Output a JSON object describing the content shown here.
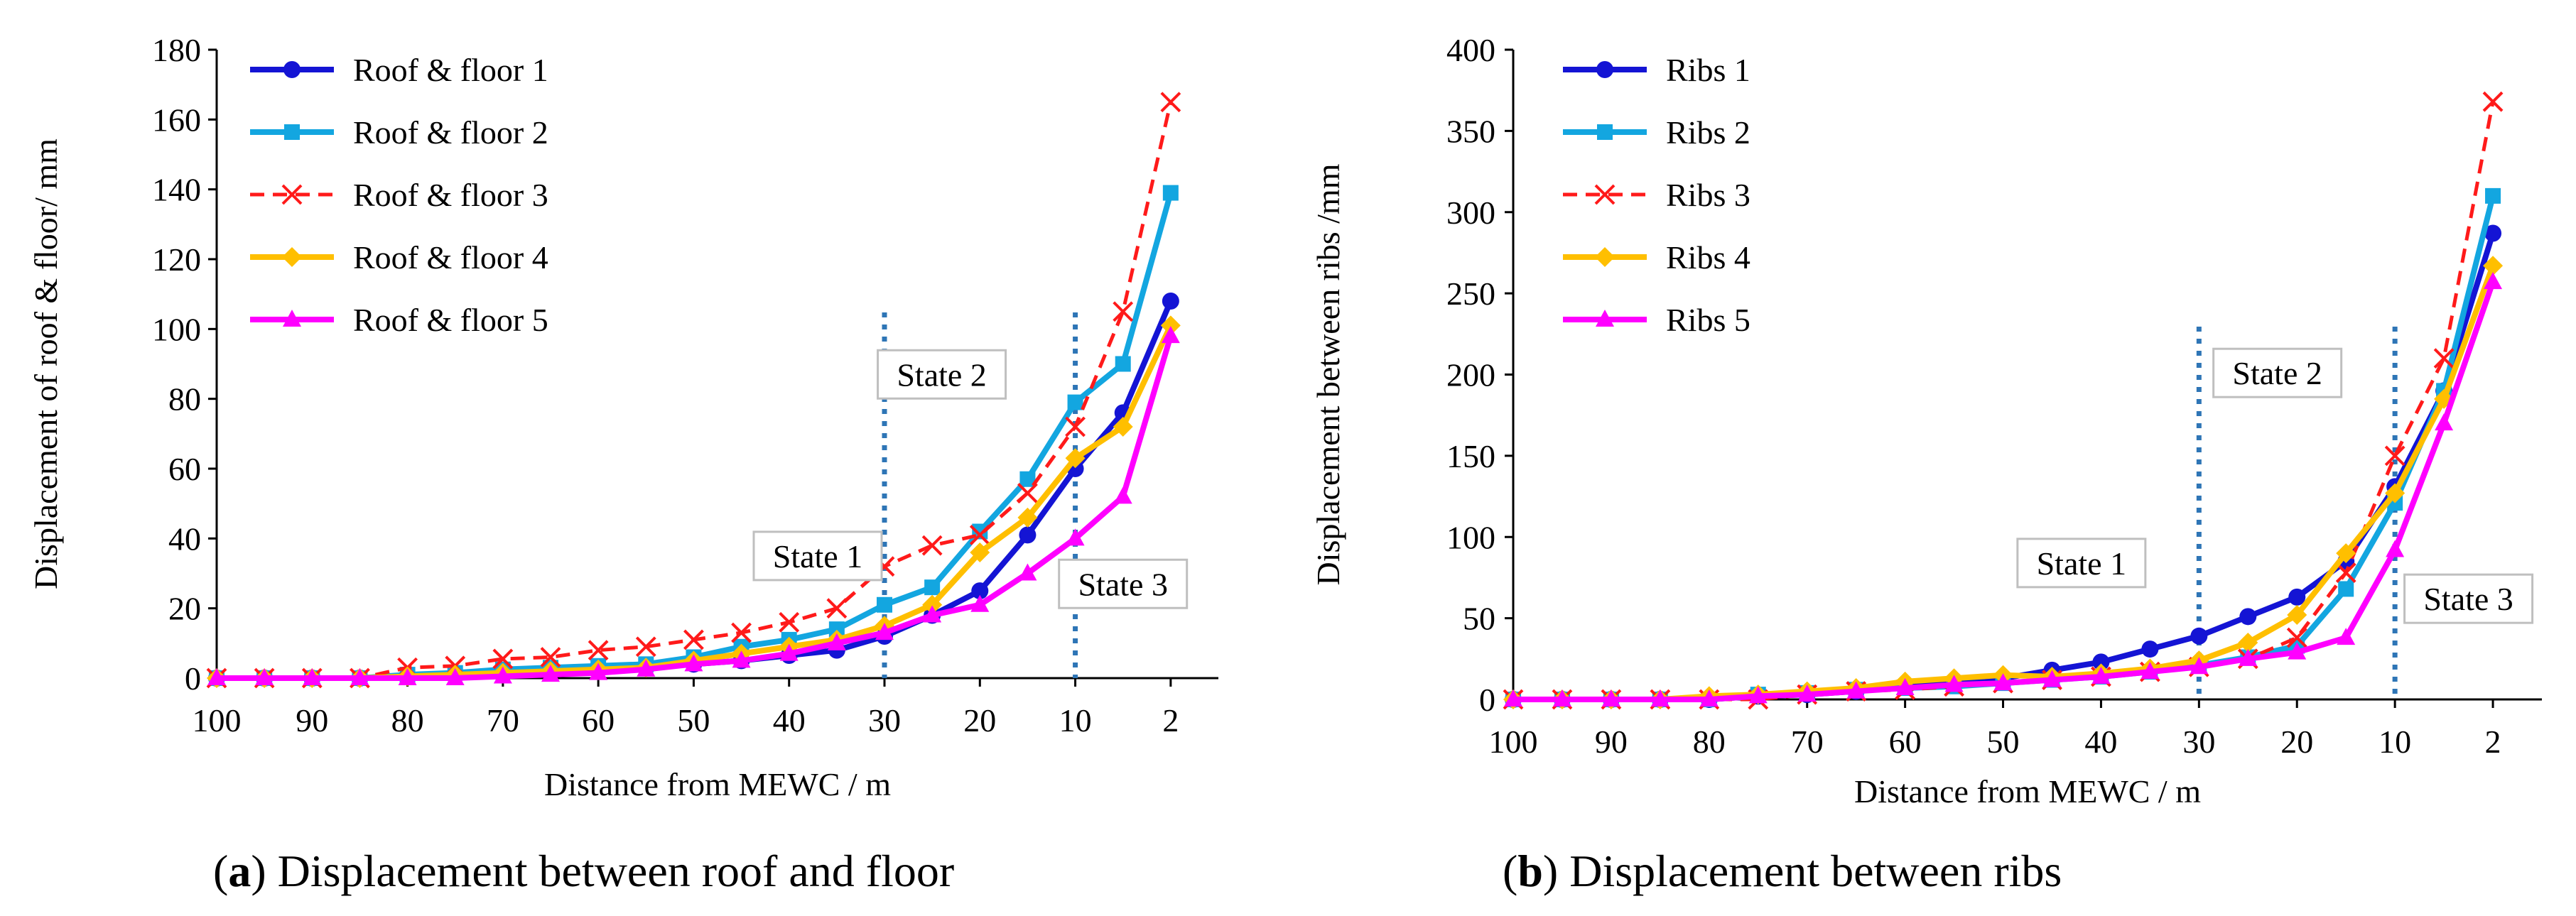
{
  "panels": [
    {
      "id": "a",
      "caption_label": "a",
      "caption_text": " Displacement between roof and floor",
      "chart_data": {
        "type": "line",
        "xlabel": "Distance from MEWC / m",
        "ylabel": "Displacement of roof & floor/ mm",
        "xlim": [
          100,
          2
        ],
        "ylim": [
          0,
          180
        ],
        "yticks": [
          0,
          20,
          40,
          60,
          80,
          100,
          120,
          140,
          160,
          180
        ],
        "xtick_labels": [
          "100",
          "90",
          "80",
          "70",
          "60",
          "50",
          "40",
          "30",
          "20",
          "10",
          "2"
        ],
        "legend_position": "top-left",
        "x": [
          100,
          95,
          90,
          85,
          80,
          75,
          70,
          65,
          60,
          55,
          50,
          45,
          40,
          35,
          30,
          25,
          20,
          15,
          10,
          6,
          2
        ],
        "series": [
          {
            "name": "Roof & floor 1",
            "color": "#1414d4",
            "marker": "circle",
            "dash": "solid",
            "values": [
              0,
              0,
              0,
              0,
              0.5,
              1,
              1.5,
              2,
              2.5,
              3,
              4,
              5,
              6.5,
              8,
              12,
              18,
              25,
              41,
              60,
              76,
              108
            ]
          },
          {
            "name": "Roof & floor 2",
            "color": "#13a6e0",
            "marker": "square",
            "dash": "solid",
            "values": [
              0,
              0,
              0,
              0,
              1,
              1.5,
              2.5,
              3,
              3.5,
              4,
              6,
              9,
              11,
              14,
              21,
              26,
              42,
              57,
              79,
              90,
              139
            ]
          },
          {
            "name": "Roof & floor 3",
            "color": "#ff1a1a",
            "marker": "x",
            "dash": "dashed",
            "values": [
              0,
              0,
              0,
              0,
              3,
              3.5,
              5.5,
              6,
              8,
              9,
              11,
              13,
              16,
              20,
              32,
              38,
              41,
              53,
              72,
              105,
              165
            ]
          },
          {
            "name": "Roof & floor 4",
            "color": "#ffbf00",
            "marker": "diamond",
            "dash": "solid",
            "values": [
              0,
              0,
              0,
              0,
              0.5,
              1,
              1.5,
              2,
              2.5,
              3,
              5,
              7,
              9,
              11,
              15,
              21,
              36,
              46,
              63,
              72,
              101
            ]
          },
          {
            "name": "Roof & floor 5",
            "color": "#ff00ff",
            "marker": "triangle",
            "dash": "solid",
            "values": [
              0,
              0,
              0,
              0,
              0,
              0,
              0.5,
              1,
              1.5,
              2.5,
              4,
              5,
              7,
              10,
              13,
              18,
              21,
              30,
              40,
              52,
              98
            ]
          }
        ],
        "state_lines": [
          30,
          10
        ],
        "annotations": [
          {
            "text": "State 1",
            "x": 37,
            "y": 35
          },
          {
            "text": "State 2",
            "x": 24,
            "y": 87
          },
          {
            "text": "State 3",
            "x": 6,
            "y": 27
          }
        ]
      }
    },
    {
      "id": "b",
      "caption_label": "b",
      "caption_text": " Displacement between ribs",
      "chart_data": {
        "type": "line",
        "xlabel": "Distance from MEWC / m",
        "ylabel": "Displacement between ribs /mm",
        "xlim": [
          100,
          2
        ],
        "ylim": [
          0,
          400
        ],
        "yticks": [
          0,
          50,
          100,
          150,
          200,
          250,
          300,
          350,
          400
        ],
        "xtick_labels": [
          "100",
          "90",
          "80",
          "70",
          "60",
          "50",
          "40",
          "30",
          "20",
          "10",
          "2"
        ],
        "legend_position": "top-left",
        "x": [
          100,
          95,
          90,
          85,
          80,
          75,
          70,
          65,
          60,
          55,
          50,
          45,
          40,
          35,
          30,
          25,
          20,
          15,
          10,
          6,
          2
        ],
        "series": [
          {
            "name": "Ribs 1",
            "color": "#1414d4",
            "marker": "circle",
            "dash": "solid",
            "values": [
              0,
              0,
              0,
              0,
              0,
              2,
              3,
              5,
              8,
              10,
              13,
              18,
              23,
              31,
              39,
              51,
              63,
              85,
              131,
              190,
              287
            ]
          },
          {
            "name": "Ribs 2",
            "color": "#13a6e0",
            "marker": "square",
            "dash": "solid",
            "values": [
              0,
              0,
              0,
              0,
              0,
              3,
              4,
              6,
              7,
              8,
              10,
              12,
              14,
              17,
              21,
              26,
              33,
              68,
              121,
              190,
              310
            ]
          },
          {
            "name": "Ribs 3",
            "color": "#ff1a1a",
            "marker": "x",
            "dash": "dashed",
            "values": [
              0,
              0,
              0,
              0,
              0,
              0,
              3,
              5,
              6,
              8,
              10,
              12,
              14,
              17,
              20,
              25,
              38,
              78,
              150,
              210,
              368
            ]
          },
          {
            "name": "Ribs 4",
            "color": "#ffbf00",
            "marker": "diamond",
            "dash": "solid",
            "values": [
              0,
              0,
              0,
              0,
              2,
              3,
              5,
              7,
              11,
              13,
              15,
              14,
              16,
              19,
              24,
              35,
              52,
              90,
              127,
              185,
              267
            ]
          },
          {
            "name": "Ribs 5",
            "color": "#ff00ff",
            "marker": "triangle",
            "dash": "solid",
            "values": [
              0,
              0,
              0,
              0,
              0,
              2,
              3,
              5,
              7,
              9,
              10,
              12,
              14,
              17,
              20,
              25,
              29,
              38,
              92,
              170,
              257
            ]
          }
        ],
        "state_lines": [
          30,
          10
        ],
        "annotations": [
          {
            "text": "State 1",
            "x": 42,
            "y": 84
          },
          {
            "text": "State 2",
            "x": 22,
            "y": 201
          },
          {
            "text": "State 3",
            "x": 4,
            "y": 62
          }
        ]
      }
    }
  ]
}
